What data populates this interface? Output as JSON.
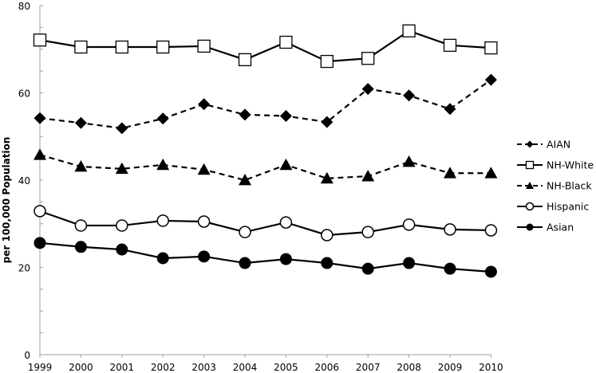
{
  "chart_data": {
    "type": "line",
    "title": "",
    "xlabel": "",
    "ylabel": "per 100,000 Population",
    "ylim": [
      0,
      80
    ],
    "yticks": [
      0,
      20,
      40,
      60,
      80
    ],
    "y_minor_step": 5,
    "grid": false,
    "legend_position": "right",
    "x": [
      "1999",
      "2000",
      "2001",
      "2002",
      "2003",
      "2004",
      "2005",
      "2006",
      "2007",
      "2008",
      "2009",
      "2010"
    ],
    "series": [
      {
        "name": "AIAN",
        "line": "dashed",
        "marker": "diamond-filled",
        "values": [
          54.2,
          53.1,
          51.9,
          54.1,
          57.4,
          55.0,
          54.7,
          53.3,
          60.9,
          59.4,
          56.3,
          63.0
        ]
      },
      {
        "name": "NH-White",
        "line": "solid",
        "marker": "square-open",
        "values": [
          72.1,
          70.5,
          70.5,
          70.5,
          70.7,
          67.6,
          71.6,
          67.2,
          67.9,
          74.2,
          70.9,
          70.3
        ]
      },
      {
        "name": "NH-Black",
        "line": "dashed",
        "marker": "triangle-filled",
        "values": [
          45.8,
          43.1,
          42.6,
          43.5,
          42.4,
          40.0,
          43.5,
          40.4,
          40.9,
          44.2,
          41.6,
          41.6
        ]
      },
      {
        "name": "Hispanic",
        "line": "solid",
        "marker": "circle-open",
        "values": [
          32.9,
          29.6,
          29.6,
          30.7,
          30.5,
          28.1,
          30.3,
          27.4,
          28.1,
          29.8,
          28.7,
          28.5
        ]
      },
      {
        "name": "Asian",
        "line": "solid",
        "marker": "circle-filled",
        "values": [
          25.6,
          24.7,
          24.1,
          22.1,
          22.5,
          21.0,
          21.9,
          21.0,
          19.7,
          21.0,
          19.7,
          19.0
        ]
      }
    ]
  },
  "colors": {
    "series": "#000000",
    "axis": "#a0a0a0",
    "background": "#ffffff"
  }
}
